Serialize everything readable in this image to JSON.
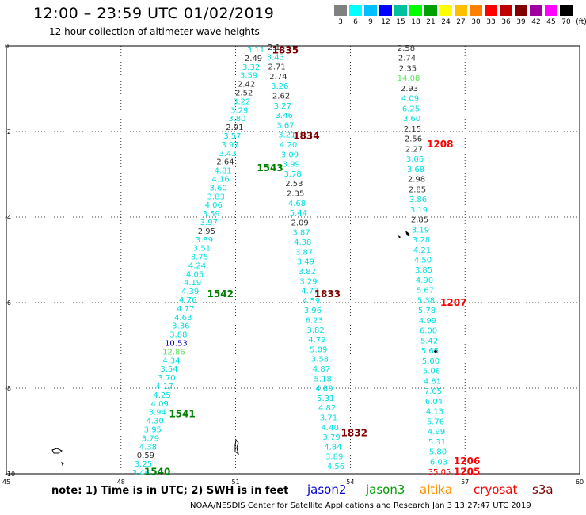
{
  "header": {
    "title": "12:00 – 23:59 UTC 01/02/2019",
    "subtitle": "12 hour collection of altimeter wave heights"
  },
  "legend": {
    "unit": "(ft)",
    "colors": [
      "#808080",
      "#00ffff",
      "#00bfff",
      "#0000ff",
      "#00c0a0",
      "#00ff00",
      "#00a000",
      "#ffff00",
      "#ffc000",
      "#ff8000",
      "#ff0000",
      "#c00000",
      "#800000",
      "#a000a0",
      "#ff00ff",
      "#000000"
    ],
    "levels": [
      "3",
      "6",
      "9",
      "12",
      "15",
      "18",
      "21",
      "24",
      "27",
      "30",
      "33",
      "36",
      "39",
      "42",
      "45",
      "70"
    ]
  },
  "map": {
    "lon_range": [
      45,
      60
    ],
    "lat_range": [
      -10,
      0
    ],
    "x_ticks": [
      "45",
      "48",
      "51",
      "54",
      "57",
      "60"
    ],
    "y_ticks": [
      "0",
      "-2",
      "-4",
      "-6",
      "-8",
      "-10"
    ],
    "wave_colors": {
      "cyan": "#00e0e0",
      "gray": "#303030",
      "green": "#60e060",
      "blue": "#0000c0",
      "darkred": "#800000",
      "red": "#ff0000"
    },
    "passes": [
      {
        "label": "1835",
        "lon": 52.3,
        "lat": -0.1,
        "color": "#800000"
      },
      {
        "label": "1834",
        "lon": 52.85,
        "lat": -2.1,
        "color": "#800000"
      },
      {
        "label": "1833",
        "lon": 53.4,
        "lat": -5.8,
        "color": "#800000"
      },
      {
        "label": "1832",
        "lon": 54.1,
        "lat": -9.05,
        "color": "#800000"
      },
      {
        "label": "1543",
        "lon": 51.9,
        "lat": -2.85,
        "color": "#008000"
      },
      {
        "label": "1542",
        "lon": 50.6,
        "lat": -5.8,
        "color": "#008000"
      },
      {
        "label": "1541",
        "lon": 49.6,
        "lat": -8.6,
        "color": "#008000"
      },
      {
        "label": "1540",
        "lon": 48.95,
        "lat": -9.95,
        "color": "#008000"
      },
      {
        "label": "1208",
        "lon": 56.35,
        "lat": -2.3,
        "color": "#ff0000"
      },
      {
        "label": "1207",
        "lon": 56.7,
        "lat": -6.0,
        "color": "#ff0000"
      },
      {
        "label": "1206",
        "lon": 57.05,
        "lat": -9.7,
        "color": "#ff0000"
      },
      {
        "label": "1205",
        "lon": 57.05,
        "lat": -9.95,
        "color": "#ff0000"
      }
    ],
    "track_a": [
      {
        "v": "3.11",
        "c": "cyan"
      },
      {
        "v": "2.49",
        "c": "gray"
      },
      {
        "v": "3.32",
        "c": "cyan"
      },
      {
        "v": "3.59",
        "c": "cyan"
      },
      {
        "v": "2.42",
        "c": "gray"
      },
      {
        "v": "2.52",
        "c": "gray"
      },
      {
        "v": "3.22",
        "c": "cyan"
      },
      {
        "v": "3.29",
        "c": "cyan"
      },
      {
        "v": "3.80",
        "c": "cyan"
      },
      {
        "v": "2.91",
        "c": "gray"
      },
      {
        "v": "3.57",
        "c": "cyan"
      },
      {
        "v": "3.97",
        "c": "cyan"
      },
      {
        "v": "3.43",
        "c": "cyan"
      },
      {
        "v": "2.64",
        "c": "gray"
      },
      {
        "v": "4.81",
        "c": "cyan"
      },
      {
        "v": "4.16",
        "c": "cyan"
      },
      {
        "v": "3.60",
        "c": "cyan"
      },
      {
        "v": "3.83",
        "c": "cyan"
      },
      {
        "v": "4.06",
        "c": "cyan"
      },
      {
        "v": "3.59",
        "c": "cyan"
      },
      {
        "v": "3.97",
        "c": "cyan"
      },
      {
        "v": "2.95",
        "c": "gray"
      },
      {
        "v": "3.89",
        "c": "cyan"
      },
      {
        "v": "3.51",
        "c": "cyan"
      },
      {
        "v": "3.75",
        "c": "cyan"
      },
      {
        "v": "4.24",
        "c": "cyan"
      },
      {
        "v": "4.05",
        "c": "cyan"
      },
      {
        "v": "4.19",
        "c": "cyan"
      },
      {
        "v": "4.39",
        "c": "cyan"
      },
      {
        "v": "4.76",
        "c": "cyan"
      },
      {
        "v": "4.77",
        "c": "cyan"
      },
      {
        "v": "4.63",
        "c": "cyan"
      },
      {
        "v": "3.36",
        "c": "cyan"
      },
      {
        "v": "3.88",
        "c": "cyan"
      },
      {
        "v": "10.53",
        "c": "blue"
      },
      {
        "v": "12.86",
        "c": "green"
      },
      {
        "v": "4.34",
        "c": "cyan"
      },
      {
        "v": "3.54",
        "c": "cyan"
      },
      {
        "v": "3.70",
        "c": "cyan"
      },
      {
        "v": "4.17",
        "c": "cyan"
      },
      {
        "v": "4.25",
        "c": "cyan"
      },
      {
        "v": "4.09",
        "c": "cyan"
      },
      {
        "v": "3.94",
        "c": "cyan"
      },
      {
        "v": "4.30",
        "c": "cyan"
      },
      {
        "v": "3.95",
        "c": "cyan"
      },
      {
        "v": "3.79",
        "c": "cyan"
      },
      {
        "v": "4.38",
        "c": "cyan"
      },
      {
        "v": "0.59",
        "c": "gray"
      },
      {
        "v": "3.25",
        "c": "cyan"
      },
      {
        "v": "3.46",
        "c": "cyan"
      }
    ],
    "track_b": [
      {
        "v": "2.1",
        "c": "gray"
      },
      {
        "v": "3.43",
        "c": "cyan"
      },
      {
        "v": "2.71",
        "c": "gray"
      },
      {
        "v": "2.74",
        "c": "gray"
      },
      {
        "v": "3.26",
        "c": "cyan"
      },
      {
        "v": "2.62",
        "c": "gray"
      },
      {
        "v": "3.27",
        "c": "cyan"
      },
      {
        "v": "3.46",
        "c": "cyan"
      },
      {
        "v": "3.67",
        "c": "cyan"
      },
      {
        "v": "3.21",
        "c": "cyan"
      },
      {
        "v": "4.20",
        "c": "cyan"
      },
      {
        "v": "3.09",
        "c": "cyan"
      },
      {
        "v": "3.99",
        "c": "cyan"
      },
      {
        "v": "3.78",
        "c": "cyan"
      },
      {
        "v": "2.53",
        "c": "gray"
      },
      {
        "v": "2.35",
        "c": "gray"
      },
      {
        "v": "4.68",
        "c": "cyan"
      },
      {
        "v": "5.44",
        "c": "cyan"
      },
      {
        "v": "2.09",
        "c": "gray"
      },
      {
        "v": "3.87",
        "c": "cyan"
      },
      {
        "v": "4.38",
        "c": "cyan"
      },
      {
        "v": "3.87",
        "c": "cyan"
      },
      {
        "v": "3.49",
        "c": "cyan"
      },
      {
        "v": "3.82",
        "c": "cyan"
      },
      {
        "v": "3.29",
        "c": "cyan"
      },
      {
        "v": "4.77",
        "c": "cyan"
      },
      {
        "v": "4.59",
        "c": "cyan"
      },
      {
        "v": "3.96",
        "c": "cyan"
      },
      {
        "v": "6.23",
        "c": "cyan"
      },
      {
        "v": "3.82",
        "c": "cyan"
      },
      {
        "v": "4.79",
        "c": "cyan"
      },
      {
        "v": "5.09",
        "c": "cyan"
      },
      {
        "v": "3.58",
        "c": "cyan"
      },
      {
        "v": "4.87",
        "c": "cyan"
      },
      {
        "v": "5.18",
        "c": "cyan"
      },
      {
        "v": "4.89",
        "c": "cyan"
      },
      {
        "v": "5.31",
        "c": "cyan"
      },
      {
        "v": "4.82",
        "c": "cyan"
      },
      {
        "v": "3.71",
        "c": "cyan"
      },
      {
        "v": "4.40",
        "c": "cyan"
      },
      {
        "v": "3.79",
        "c": "cyan"
      },
      {
        "v": "4.84",
        "c": "cyan"
      },
      {
        "v": "3.89",
        "c": "cyan"
      },
      {
        "v": "4.56",
        "c": "cyan"
      }
    ],
    "track_c": [
      {
        "v": "2.58",
        "c": "gray"
      },
      {
        "v": "2.74",
        "c": "gray"
      },
      {
        "v": "2.35",
        "c": "gray"
      },
      {
        "v": "14.08",
        "c": "green"
      },
      {
        "v": "2.93",
        "c": "gray"
      },
      {
        "v": "4.09",
        "c": "cyan"
      },
      {
        "v": "6.25",
        "c": "cyan"
      },
      {
        "v": "3.60",
        "c": "cyan"
      },
      {
        "v": "2.15",
        "c": "gray"
      },
      {
        "v": "2.56",
        "c": "gray"
      },
      {
        "v": "2.27",
        "c": "gray"
      },
      {
        "v": "3.06",
        "c": "cyan"
      },
      {
        "v": "3.68",
        "c": "cyan"
      },
      {
        "v": "2.98",
        "c": "gray"
      },
      {
        "v": "2.85",
        "c": "gray"
      },
      {
        "v": "3.86",
        "c": "cyan"
      },
      {
        "v": "3.19",
        "c": "cyan"
      },
      {
        "v": "2.85",
        "c": "gray"
      },
      {
        "v": "3.19",
        "c": "cyan"
      },
      {
        "v": "3.28",
        "c": "cyan"
      },
      {
        "v": "4.21",
        "c": "cyan"
      },
      {
        "v": "4.50",
        "c": "cyan"
      },
      {
        "v": "3.85",
        "c": "cyan"
      },
      {
        "v": "4.90",
        "c": "cyan"
      },
      {
        "v": "5.67",
        "c": "cyan"
      },
      {
        "v": "5.38",
        "c": "cyan"
      },
      {
        "v": "5.78",
        "c": "cyan"
      },
      {
        "v": "4.99",
        "c": "cyan"
      },
      {
        "v": "6.00",
        "c": "cyan"
      },
      {
        "v": "5.42",
        "c": "cyan"
      },
      {
        "v": "5.65",
        "c": "cyan"
      },
      {
        "v": "5.00",
        "c": "cyan"
      },
      {
        "v": "5.06",
        "c": "cyan"
      },
      {
        "v": "4.81",
        "c": "cyan"
      },
      {
        "v": "7.05",
        "c": "cyan"
      },
      {
        "v": "6.04",
        "c": "cyan"
      },
      {
        "v": "4.13",
        "c": "cyan"
      },
      {
        "v": "5.76",
        "c": "cyan"
      },
      {
        "v": "4.99",
        "c": "cyan"
      },
      {
        "v": "5.31",
        "c": "cyan"
      },
      {
        "v": "5.80",
        "c": "cyan"
      },
      {
        "v": "6.03",
        "c": "cyan"
      },
      {
        "v": "35.05",
        "c": "red"
      }
    ]
  },
  "note": "note:  1) Time is in UTC;  2) SWH is in feet",
  "satellites": [
    {
      "name": "jason2",
      "color": "#0000d0"
    },
    {
      "name": "jason3",
      "color": "#00a000"
    },
    {
      "name": "altika",
      "color": "#ff9000"
    },
    {
      "name": "cryosat",
      "color": "#ff0000"
    },
    {
      "name": "s3a",
      "color": "#800000"
    }
  ],
  "footer": "NOAA/NESDIS Center for Satellite Applications and Research   Jan  3 13:27:47 UTC 2019"
}
